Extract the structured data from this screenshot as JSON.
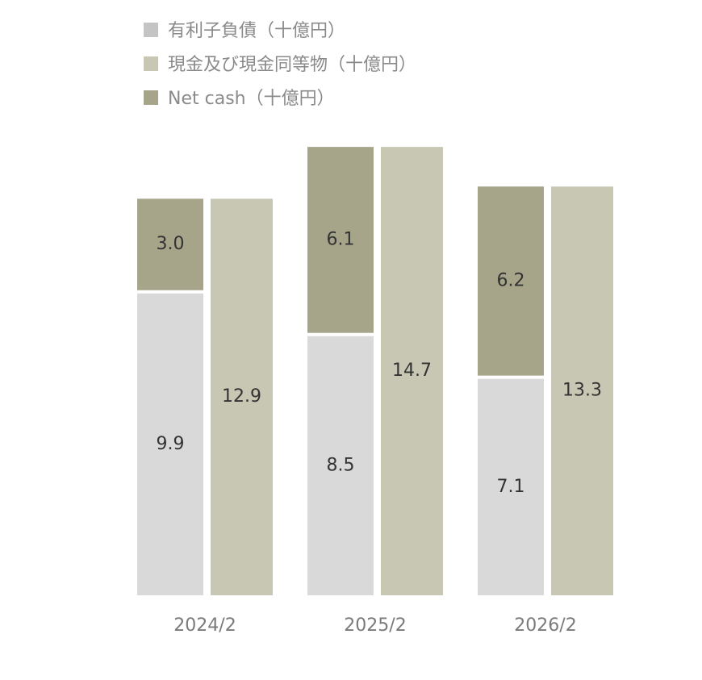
{
  "legend": [
    {
      "label": "有利子負債（十億円）",
      "color": "#c4c4c4"
    },
    {
      "label": "現金及び現金同等物（十億円）",
      "color": "#c7c7b3"
    },
    {
      "label": "Net cash（十億円）",
      "color": "#a6a58a"
    }
  ],
  "chart_data": {
    "type": "bar",
    "categories": [
      "2024/2",
      "2025/2",
      "2026/2"
    ],
    "series": [
      {
        "name": "有利子負債（十億円）",
        "values": [
          9.9,
          8.5,
          7.1
        ],
        "color": "#d9d9d9"
      },
      {
        "name": "Net cash（十億円）",
        "values": [
          3.0,
          6.1,
          6.2
        ],
        "color": "#a6a58a"
      },
      {
        "name": "現金及び現金同等物（十億円）",
        "values": [
          12.9,
          14.7,
          13.3
        ],
        "color": "#c7c7b3"
      }
    ],
    "stacking": "debt and net cash stacked; cash and equivalents separate bar",
    "legend_position": "top-left",
    "grid": false
  }
}
